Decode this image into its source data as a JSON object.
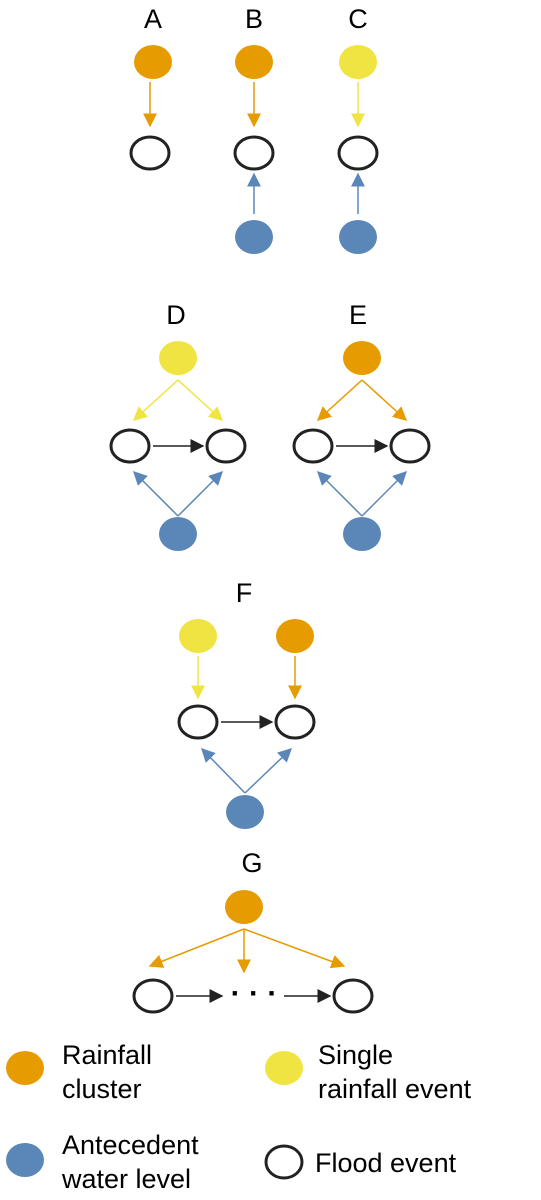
{
  "colors": {
    "rainfall_cluster": "#e69b00",
    "single_rainfall": "#f0e442",
    "antecedent": "#5b86b8",
    "flood_stroke": "#222222",
    "flow_arrow": "#222222"
  },
  "panels": [
    {
      "label": "A"
    },
    {
      "label": "B"
    },
    {
      "label": "C"
    },
    {
      "label": "D"
    },
    {
      "label": "E"
    },
    {
      "label": "F"
    },
    {
      "label": "G"
    }
  ],
  "panel_g_ellipsis": "· · ·",
  "legend": {
    "rainfall_cluster": {
      "line1": "Rainfall",
      "line2": "cluster"
    },
    "single_rainfall": {
      "line1": "Single",
      "line2": "rainfall event"
    },
    "antecedent": {
      "line1": "Antecedent",
      "line2": "water level"
    },
    "flood": {
      "line1": "Flood event"
    }
  }
}
